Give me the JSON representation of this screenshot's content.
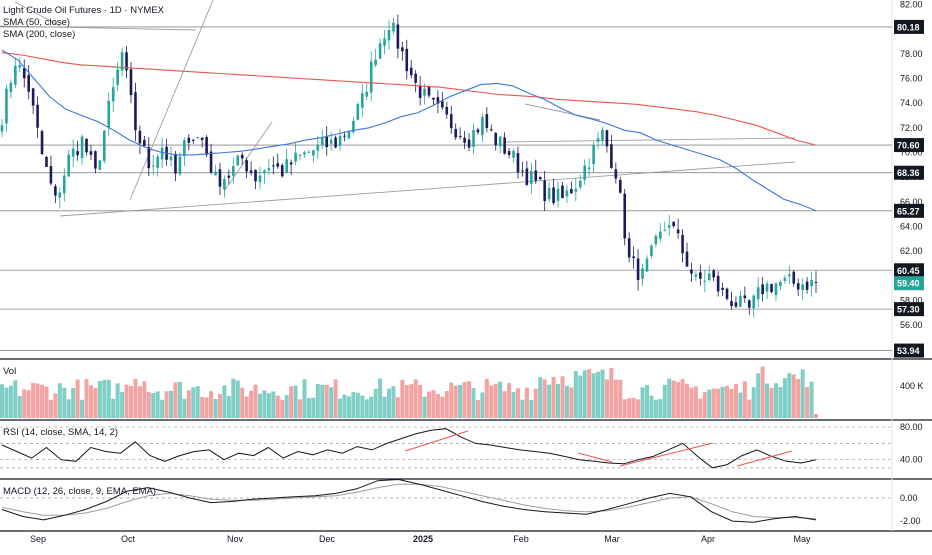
{
  "header": {
    "title": "Light Crude Oil Futures · 1D · NYMEX",
    "sma50_label": "SMA (50, close)",
    "sma200_label": "SMA (200, close)"
  },
  "panes": {
    "volume_label": "Vol",
    "rsi_label": "RSI (14, close, SMA, 14, 2)",
    "macd_label": "MACD (12, 26, close, 9, EMA, EMA)"
  },
  "colors": {
    "up": "#26a69a",
    "down": "#1a1a5e",
    "up_volume": "#7fcfc6",
    "down_volume": "#f4a3a3",
    "sma50": "#3c78d8",
    "sma200": "#ef5350",
    "trendline": "#9e9e9e",
    "rsi": "#131722",
    "rsi_trend": "#ef5350",
    "macd": "#131722",
    "signal": "#9e9e9e",
    "level_badge": "#131722"
  },
  "chart_data": [
    {
      "type": "line",
      "name": "price",
      "title": "Light Crude Oil Futures · 1D · NYMEX",
      "x_ticks": [
        "Sep",
        "Oct",
        "Nov",
        "Dec",
        "2025",
        "Feb",
        "Mar",
        "Apr",
        "May"
      ],
      "y_ticks": [
        82.0,
        80.0,
        78.0,
        76.0,
        74.0,
        72.0,
        70.0,
        68.0,
        66.0,
        64.0,
        62.0,
        60.0,
        58.0,
        56.0
      ],
      "ylim": [
        53.5,
        82.2
      ],
      "level_labels": [
        "80.18",
        "70.60",
        "68.36",
        "65.27",
        "60.45",
        "59.40",
        "57.30",
        "53.94"
      ],
      "close_x": [
        0,
        3,
        6,
        9,
        12,
        15,
        18,
        21,
        24,
        27,
        30,
        33,
        36,
        39,
        42,
        45,
        48,
        51,
        54,
        57,
        60,
        63,
        66,
        69,
        72,
        75,
        78,
        81,
        84,
        87,
        90,
        93,
        96,
        99,
        102,
        105,
        108,
        111,
        114,
        117,
        120,
        123,
        126,
        129,
        132,
        135,
        138,
        141,
        144,
        147,
        150,
        153,
        156,
        159,
        162,
        165,
        168,
        171,
        174,
        177,
        180,
        183
      ],
      "close": [
        73.0,
        77.5,
        75.2,
        69.8,
        66.0,
        69.5,
        71.0,
        68.2,
        73.5,
        78.0,
        72.0,
        69.0,
        70.5,
        68.2,
        71.5,
        71.0,
        67.8,
        68.2,
        69.5,
        68.0,
        69.0,
        68.5,
        69.4,
        70.0,
        70.5,
        70.8,
        72.0,
        74.2,
        78.2,
        80.6,
        78.0,
        75.5,
        74.0,
        73.0,
        72.0,
        71.2,
        72.5,
        71.0,
        70.0,
        68.5,
        67.5,
        66.5,
        66.2,
        67.5,
        69.5,
        71.5,
        68.5,
        61.2,
        60.0,
        62.5,
        64.5,
        62.0,
        59.5,
        60.0,
        58.5,
        57.8,
        57.2,
        59.0,
        59.4,
        59.4,
        59.4,
        59.4
      ],
      "sma50": [
        78.3,
        77.5,
        76.0,
        74.5,
        73.5,
        73.0,
        72.5,
        71.8,
        71.0,
        70.4,
        70.0,
        69.8,
        69.8,
        69.9,
        70.0,
        70.1,
        70.3,
        70.5,
        70.7,
        71.0,
        71.2,
        71.5,
        71.8,
        72.0,
        72.4,
        72.9,
        73.2,
        73.8,
        74.5,
        75.0,
        75.5,
        75.6,
        75.4,
        74.8,
        74.3,
        73.6,
        73.0,
        72.7,
        72.3,
        71.8,
        71.6,
        71.0,
        70.6,
        70.2,
        69.8,
        69.4,
        68.7,
        67.8,
        67.0,
        66.2,
        65.8,
        65.27
      ],
      "sma200": [
        78.1,
        77.9,
        77.6,
        77.3,
        77.1,
        77.0,
        76.9,
        76.8,
        76.7,
        76.6,
        76.5,
        76.4,
        76.3,
        76.2,
        76.1,
        76.0,
        75.9,
        75.8,
        75.7,
        75.6,
        75.5,
        75.4,
        75.3,
        75.1,
        74.9,
        74.7,
        74.6,
        74.5,
        74.3,
        74.2,
        74.1,
        74.0,
        73.9,
        73.7,
        73.5,
        73.3,
        73.0,
        72.6,
        72.2,
        71.6,
        71.0,
        70.6
      ]
    },
    {
      "type": "bar",
      "name": "volume",
      "title": "Vol",
      "y_ticks": [
        "400 K"
      ]
    },
    {
      "type": "line",
      "name": "rsi",
      "title": "RSI (14, close, SMA, 14, 2)",
      "y_ticks": [
        80.0,
        40.0
      ],
      "ylim": [
        20,
        85
      ],
      "values": [
        58,
        50,
        42,
        55,
        40,
        38,
        55,
        50,
        48,
        62,
        45,
        38,
        45,
        50,
        52,
        40,
        48,
        45,
        55,
        42,
        50,
        46,
        52,
        48,
        56,
        52,
        60,
        66,
        72,
        76,
        78,
        68,
        60,
        58,
        55,
        52,
        50,
        48,
        44,
        40,
        38,
        36,
        35,
        40,
        44,
        52,
        60,
        44,
        30,
        34,
        45,
        52,
        44,
        38,
        36,
        40
      ]
    },
    {
      "type": "line",
      "name": "macd",
      "title": "MACD (12, 26, close, 9, EMA, EMA)",
      "y_ticks": [
        0.0,
        -2.0
      ],
      "ylim": [
        -2.6,
        1.3
      ],
      "macd": [
        -1.0,
        -1.6,
        -1.9,
        -1.5,
        -1.0,
        -0.3,
        0.6,
        0.9,
        0.5,
        0.0,
        -0.4,
        -0.3,
        -0.1,
        0.0,
        0.1,
        0.2,
        0.4,
        0.8,
        1.5,
        1.6,
        1.2,
        0.7,
        0.2,
        -0.3,
        -0.7,
        -1.0,
        -1.2,
        -1.3,
        -1.4,
        -1.0,
        -0.5,
        0.0,
        0.4,
        0.1,
        -1.2,
        -2.0,
        -2.1,
        -1.8,
        -1.6,
        -1.9
      ],
      "signal": [
        -0.8,
        -1.2,
        -1.5,
        -1.5,
        -1.3,
        -0.9,
        -0.3,
        0.2,
        0.4,
        0.2,
        -0.1,
        -0.2,
        -0.2,
        -0.1,
        0.0,
        0.1,
        0.2,
        0.5,
        0.9,
        1.2,
        1.2,
        1.0,
        0.6,
        0.2,
        -0.2,
        -0.6,
        -0.9,
        -1.1,
        -1.2,
        -1.1,
        -0.8,
        -0.4,
        0.0,
        0.1,
        -0.5,
        -1.2,
        -1.6,
        -1.7,
        -1.7,
        -1.8
      ]
    }
  ]
}
